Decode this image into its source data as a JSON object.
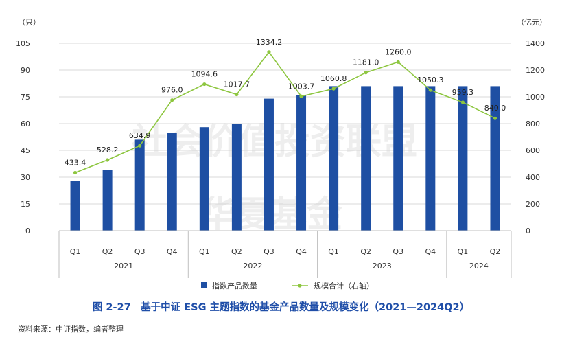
{
  "chart_data": {
    "type": "bar",
    "caption": "图 2-27　基于中证 ESG 主题指数的基金产品数量及规模变化（2021—2024Q2）",
    "source": "资料来源：中证指数，编者整理",
    "watermark_lines": [
      "社会价值投资联盟",
      "华夏基金"
    ],
    "y_left_unit": "（只）",
    "y_right_unit": "（亿元）",
    "y_left_ticks": [
      "105",
      "90",
      "75",
      "60",
      "45",
      "30",
      "15",
      "0"
    ],
    "y_right_ticks": [
      "1400",
      "1200",
      "1000",
      "800",
      "600",
      "400",
      "200",
      "0"
    ],
    "ylim_left": [
      0,
      105
    ],
    "ylim_right": [
      0,
      1400
    ],
    "grid": true,
    "legend_position": "bottom",
    "categories": [
      "Q1",
      "Q2",
      "Q3",
      "Q4",
      "Q1",
      "Q2",
      "Q3",
      "Q4",
      "Q1",
      "Q2",
      "Q3",
      "Q4",
      "Q1",
      "Q2"
    ],
    "years": [
      {
        "label": "2021",
        "count": 4
      },
      {
        "label": "2022",
        "count": 4
      },
      {
        "label": "2023",
        "count": 4
      },
      {
        "label": "2024",
        "count": 2
      }
    ],
    "series": [
      {
        "name": "指数产品数量",
        "type": "bar",
        "axis": "left",
        "color": "#1e4fa3",
        "values": [
          28,
          34,
          51,
          55,
          58,
          60,
          74,
          76,
          81,
          81,
          81,
          81,
          81,
          81
        ]
      },
      {
        "name": "规模合计（右轴）",
        "type": "line",
        "axis": "right",
        "color": "#8dc63f",
        "values": [
          433.4,
          528.2,
          634.9,
          976.0,
          1094.6,
          1017.7,
          1334.2,
          1003.7,
          1060.8,
          1181.0,
          1260.0,
          1050.3,
          959.3,
          840.0
        ],
        "labels": [
          "433.4",
          "528.2",
          "634.9",
          "976.0",
          "1094.6",
          "1017.7",
          "1334.2",
          "1003.7",
          "1060.8",
          "1181.0",
          "1260.0",
          "1050.3",
          "959.3",
          "840.0"
        ]
      }
    ]
  }
}
